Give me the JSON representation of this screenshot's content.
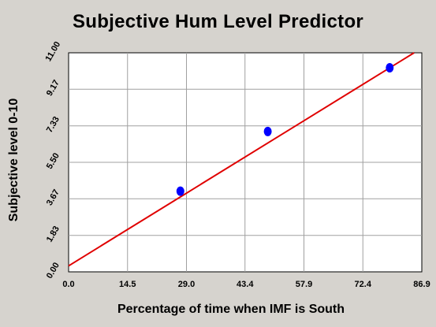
{
  "chart_data": {
    "type": "scatter",
    "title": "Subjective Hum Level Predictor",
    "xlabel": "Percentage of time when IMF is South",
    "ylabel": "Subjective level 0-10",
    "xlim": [
      0,
      86.9
    ],
    "ylim": [
      0,
      11.0
    ],
    "x_ticks": [
      "0.0",
      "14.5",
      "29.0",
      "43.4",
      "57.9",
      "72.4",
      "86.9"
    ],
    "y_ticks": [
      "0.00",
      "1.83",
      "3.67",
      "5.50",
      "7.33",
      "9.17",
      "11.00"
    ],
    "grid": true,
    "points": [
      {
        "x": 27.5,
        "y": 4.05
      },
      {
        "x": 49.0,
        "y": 7.05
      },
      {
        "x": 79.0,
        "y": 10.25
      }
    ],
    "trend_line": {
      "x": [
        0,
        85.0
      ],
      "y": [
        0.3,
        11.0
      ]
    },
    "colors": {
      "background": "#d6d3ce",
      "plot_area": "#ffffff",
      "points": "#0000ff",
      "trend_line": "#e00000",
      "grid": "#a0a0a0"
    }
  }
}
